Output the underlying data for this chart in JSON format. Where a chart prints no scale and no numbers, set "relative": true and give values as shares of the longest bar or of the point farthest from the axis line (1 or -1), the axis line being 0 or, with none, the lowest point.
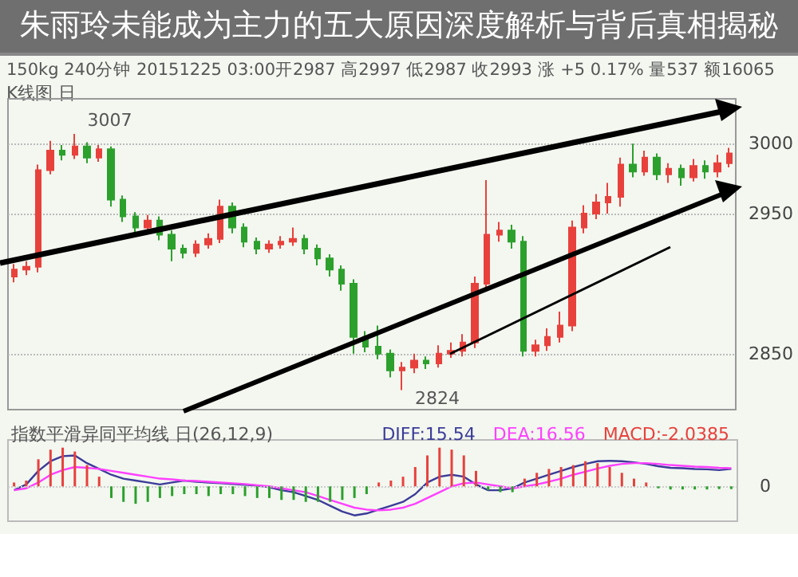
{
  "chart_data": [
    {
      "type": "candlestick",
      "title": "朱雨玲未能成为主力的五大原因深度解析与背后真相揭秘",
      "annotations": [
        "150kg 240分钟  20151225 03:00开2987 高2997 低2987 收2993 涨 +5 0.17% 量537 额16065",
        "K线图 日",
        "3007",
        "2824"
      ],
      "categories": [
        null,
        null,
        null,
        null,
        null,
        null,
        null,
        null,
        null,
        null,
        null,
        null,
        null,
        null,
        null,
        null,
        null,
        null,
        null,
        null,
        null,
        null,
        null,
        null,
        null,
        null,
        null,
        null,
        null,
        null,
        null,
        null,
        null,
        null,
        null,
        null,
        null,
        null,
        null,
        null,
        null,
        null,
        null,
        null,
        null,
        null,
        null,
        null,
        null,
        null,
        null,
        null,
        null,
        null,
        null,
        null,
        null,
        null,
        null,
        null
      ],
      "ohlc": [
        [
          2905,
          2914,
          2901,
          2910
        ],
        [
          2910,
          2916,
          2906,
          2912
        ],
        [
          2912,
          2985,
          2908,
          2981
        ],
        [
          2981,
          3002,
          2978,
          2995
        ],
        [
          2995,
          2999,
          2988,
          2992
        ],
        [
          2992,
          3007,
          2989,
          2998
        ],
        [
          2998,
          3001,
          2986,
          2990
        ],
        [
          2990,
          2999,
          2987,
          2996
        ],
        [
          2996,
          2998,
          2955,
          2960
        ],
        [
          2960,
          2963,
          2944,
          2948
        ],
        [
          2948,
          2951,
          2936,
          2940
        ],
        [
          2940,
          2949,
          2937,
          2945
        ],
        [
          2945,
          2948,
          2931,
          2935
        ],
        [
          2935,
          2938,
          2916,
          2925
        ],
        [
          2925,
          2928,
          2918,
          2922
        ],
        [
          2922,
          2931,
          2919,
          2928
        ],
        [
          2928,
          2936,
          2925,
          2932
        ],
        [
          2932,
          2960,
          2929,
          2955
        ],
        [
          2955,
          2958,
          2936,
          2940
        ],
        [
          2940,
          2943,
          2926,
          2930
        ],
        [
          2930,
          2933,
          2921,
          2925
        ],
        [
          2925,
          2931,
          2922,
          2928
        ],
        [
          2928,
          2934,
          2925,
          2930
        ],
        [
          2930,
          2940,
          2927,
          2932
        ],
        [
          2932,
          2935,
          2921,
          2925
        ],
        [
          2925,
          2928,
          2913,
          2918
        ],
        [
          2918,
          2921,
          2905,
          2910
        ],
        [
          2910,
          2913,
          2895,
          2900
        ],
        [
          2900,
          2903,
          2850,
          2862
        ],
        [
          2862,
          2866,
          2851,
          2855
        ],
        [
          2855,
          2870,
          2846,
          2850
        ],
        [
          2850,
          2853,
          2833,
          2838
        ],
        [
          2838,
          2844,
          2824,
          2840
        ],
        [
          2840,
          2850,
          2836,
          2845
        ],
        [
          2845,
          2848,
          2839,
          2843
        ],
        [
          2843,
          2856,
          2840,
          2850
        ],
        [
          2850,
          2858,
          2847,
          2852
        ],
        [
          2852,
          2864,
          2848,
          2858
        ],
        [
          2858,
          2905,
          2854,
          2900
        ],
        [
          2900,
          2974,
          2896,
          2935
        ],
        [
          2935,
          2944,
          2930,
          2938
        ],
        [
          2938,
          2942,
          2925,
          2930
        ],
        [
          2930,
          2934,
          2848,
          2852
        ],
        [
          2852,
          2860,
          2848,
          2856
        ],
        [
          2856,
          2868,
          2852,
          2862
        ],
        [
          2862,
          2880,
          2858,
          2870
        ],
        [
          2870,
          2945,
          2866,
          2940
        ],
        [
          2940,
          2956,
          2936,
          2950
        ],
        [
          2950,
          2964,
          2946,
          2958
        ],
        [
          2958,
          2972,
          2950,
          2962
        ],
        [
          2962,
          2990,
          2955,
          2985
        ],
        [
          2985,
          3000,
          2976,
          2980
        ],
        [
          2980,
          2995,
          2977,
          2990
        ],
        [
          2990,
          2993,
          2974,
          2978
        ],
        [
          2978,
          2986,
          2972,
          2982
        ],
        [
          2982,
          2985,
          2970,
          2976
        ],
        [
          2976,
          2989,
          2973,
          2984
        ],
        [
          2984,
          2988,
          2975,
          2980
        ],
        [
          2980,
          2992,
          2976,
          2986
        ],
        [
          2986,
          2997,
          2983,
          2993
        ]
      ],
      "ylim": [
        2810,
        3032
      ],
      "yticks": [
        2850,
        2950,
        3000
      ],
      "grid": "y",
      "tick_labels": "y"
    },
    {
      "type": "bar",
      "title": "指数平滑异同平均线 日(26,12,9)",
      "relative": true,
      "legend": "top right",
      "tick_labels": false,
      "categories": [
        null,
        null,
        null,
        null,
        null,
        null,
        null,
        null,
        null,
        null,
        null,
        null,
        null,
        null,
        null,
        null,
        null,
        null,
        null,
        null,
        null,
        null,
        null,
        null,
        null,
        null,
        null,
        null,
        null,
        null,
        null,
        null,
        null,
        null,
        null,
        null,
        null,
        null,
        null,
        null,
        null,
        null,
        null,
        null,
        null,
        null,
        null,
        null,
        null,
        null,
        null,
        null,
        null,
        null,
        null,
        null,
        null,
        null,
        null,
        null
      ],
      "ref_lines": [
        {
          "axis": "y",
          "value": 0,
          "label": "0",
          "line_style": "dotted",
          "color": "#cccccc"
        }
      ],
      "series": [
        {
          "name": "DIFF:15.54",
          "type": "line",
          "color": "#3b3b98",
          "values": [
            -0.1,
            0.05,
            0.4,
            0.65,
            0.78,
            0.8,
            0.6,
            0.45,
            0.3,
            0.2,
            0.15,
            0.1,
            0.05,
            0.1,
            0.15,
            0.12,
            0.1,
            0.08,
            0.06,
            0.04,
            0.02,
            -0.02,
            -0.1,
            -0.15,
            -0.25,
            -0.35,
            -0.5,
            -0.65,
            -0.75,
            -0.7,
            -0.6,
            -0.5,
            -0.4,
            -0.2,
            0.1,
            0.25,
            0.3,
            0.25,
            0.05,
            -0.1,
            -0.1,
            -0.05,
            0.1,
            0.2,
            0.3,
            0.4,
            0.5,
            0.58,
            0.65,
            0.66,
            0.65,
            0.62,
            0.58,
            0.52,
            0.48,
            0.47,
            0.45,
            0.44,
            0.42,
            0.45
          ]
        },
        {
          "name": "DEA:16.56",
          "type": "line",
          "color": "#ff40ff",
          "values": [
            -0.1,
            -0.05,
            0.1,
            0.3,
            0.42,
            0.5,
            0.48,
            0.45,
            0.4,
            0.35,
            0.3,
            0.25,
            0.2,
            0.18,
            0.15,
            0.14,
            0.12,
            0.1,
            0.08,
            0.06,
            0.03,
            0.0,
            -0.05,
            -0.1,
            -0.15,
            -0.25,
            -0.35,
            -0.45,
            -0.55,
            -0.6,
            -0.62,
            -0.6,
            -0.55,
            -0.45,
            -0.3,
            -0.15,
            0.0,
            0.08,
            0.1,
            0.05,
            0.0,
            -0.05,
            0.0,
            0.05,
            0.12,
            0.2,
            0.3,
            0.38,
            0.46,
            0.53,
            0.58,
            0.6,
            0.6,
            0.58,
            0.55,
            0.53,
            0.51,
            0.5,
            0.48,
            0.47
          ]
        },
        {
          "name": "MACD:-2.0385",
          "colors": [
            "#e8413c",
            "#e8413c",
            "#e8413c",
            "#e8413c",
            "#e8413c",
            "#e8413c",
            "#e8413c",
            "#e8413c",
            "#2ca02c",
            "#2ca02c",
            "#2ca02c",
            "#2ca02c",
            "#2ca02c",
            "#2ca02c",
            "#2ca02c",
            "#2ca02c",
            "#2ca02c",
            "#2ca02c",
            "#2ca02c",
            "#2ca02c",
            "#2ca02c",
            "#2ca02c",
            "#2ca02c",
            "#2ca02c",
            "#2ca02c",
            "#2ca02c",
            "#2ca02c",
            "#2ca02c",
            "#2ca02c",
            "#2ca02c",
            "#e8413c",
            "#e8413c",
            "#e8413c",
            "#e8413c",
            "#e8413c",
            "#e8413c",
            "#e8413c",
            "#e8413c",
            "#e8413c",
            "#2ca02c",
            "#2ca02c",
            "#2ca02c",
            "#e8413c",
            "#e8413c",
            "#e8413c",
            "#e8413c",
            "#e8413c",
            "#e8413c",
            "#e8413c",
            "#e8413c",
            "#e8413c",
            "#e8413c",
            "#e8413c",
            "#2ca02c",
            "#2ca02c",
            "#2ca02c",
            "#2ca02c",
            "#2ca02c",
            "#2ca02c",
            "#2ca02c"
          ],
          "values": [
            0.1,
            0.15,
            0.7,
            0.95,
            1.0,
            0.9,
            0.55,
            0.25,
            -0.3,
            -0.4,
            -0.45,
            -0.4,
            -0.3,
            -0.25,
            -0.2,
            -0.2,
            -0.25,
            -0.2,
            -0.2,
            -0.25,
            -0.3,
            -0.3,
            -0.35,
            -0.35,
            -0.4,
            -0.4,
            -0.4,
            -0.35,
            -0.3,
            -0.2,
            0.1,
            0.15,
            0.25,
            0.5,
            0.8,
            1.0,
            0.95,
            0.8,
            0.4,
            -0.1,
            -0.15,
            -0.15,
            0.2,
            0.35,
            0.45,
            0.5,
            0.55,
            0.65,
            0.6,
            0.5,
            0.35,
            0.2,
            0.1,
            -0.05,
            -0.08,
            -0.08,
            -0.08,
            -0.08,
            -0.07,
            -0.07
          ]
        }
      ]
    }
  ]
}
